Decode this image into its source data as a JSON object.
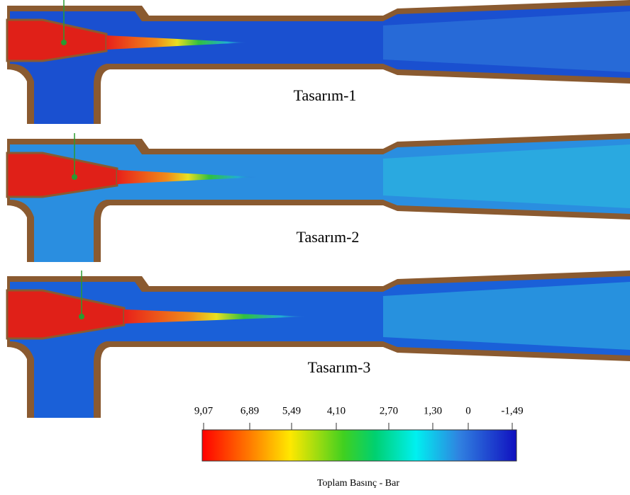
{
  "panels": [
    {
      "label": "Tasarım-1"
    },
    {
      "label": "Tasarım-2"
    },
    {
      "label": "Tasarım-3"
    }
  ],
  "colorbar": {
    "ticks": [
      "9,07",
      "6,89",
      "5,49",
      "4,10",
      "2,70",
      "1,30",
      "0",
      "-1,49"
    ],
    "title": "Toplam Basınç - Bar"
  }
}
